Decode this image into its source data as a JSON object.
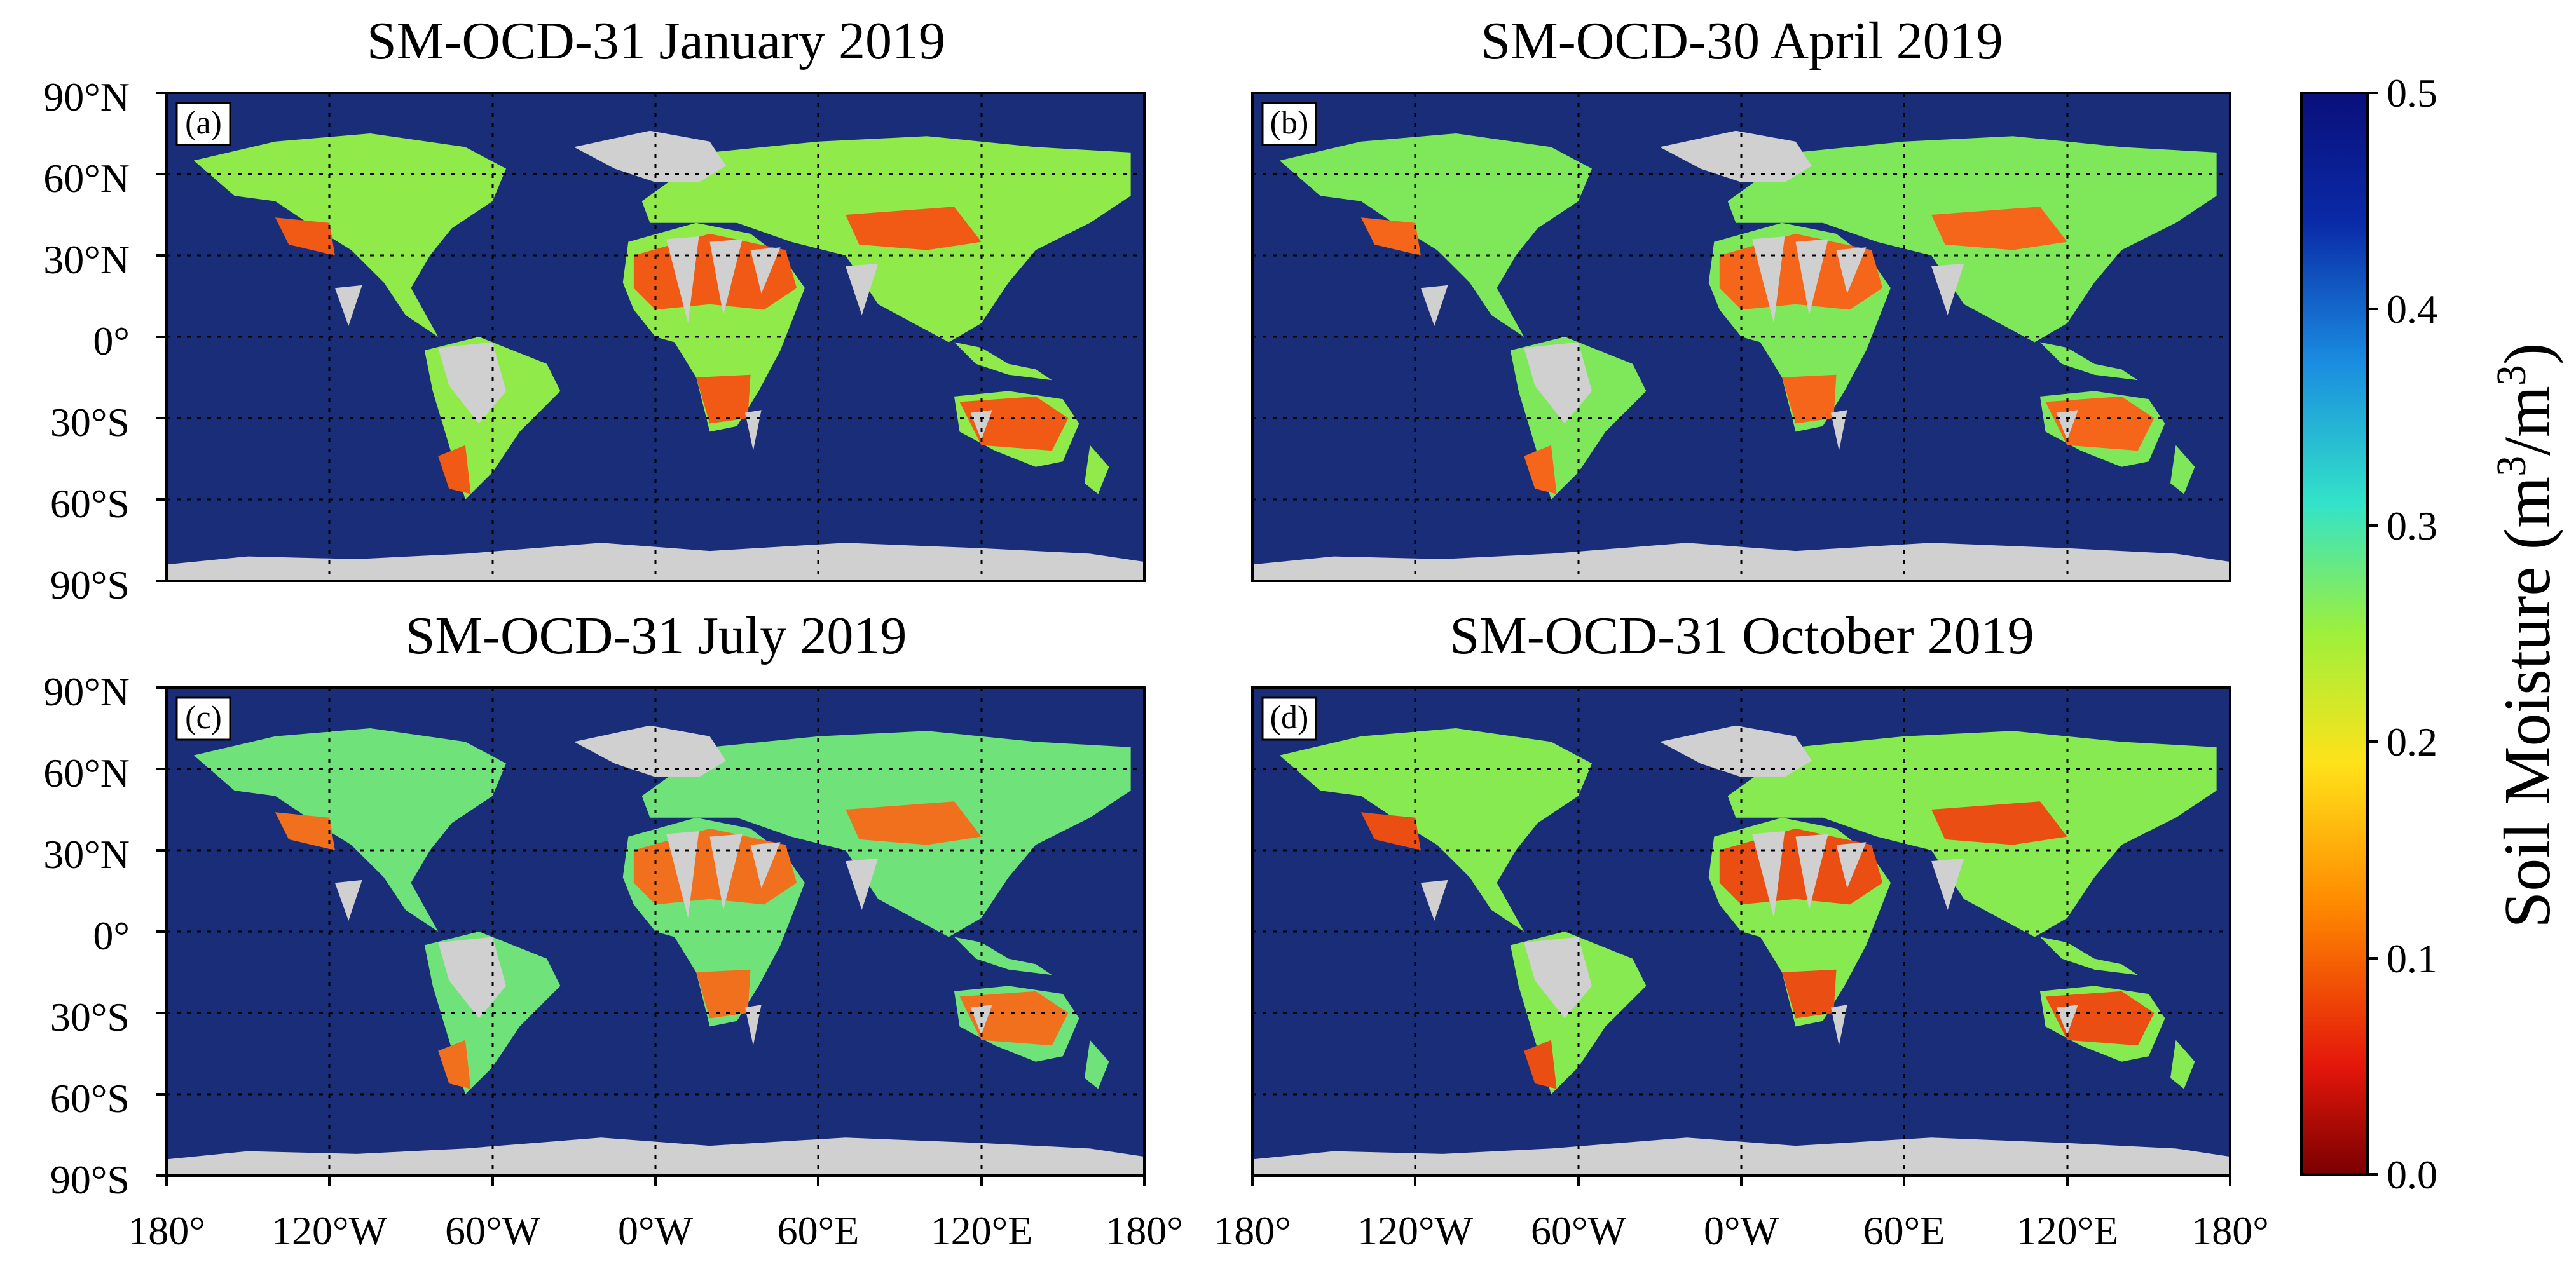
{
  "panels": [
    {
      "id": "a",
      "letter": "(a)",
      "title": "SM-OCD-31 January 2019"
    },
    {
      "id": "b",
      "letter": "(b)",
      "title": "SM-OCD-30 April 2019"
    },
    {
      "id": "c",
      "letter": "(c)",
      "title": "SM-OCD-31 July 2019"
    },
    {
      "id": "d",
      "letter": "(d)",
      "title": "SM-OCD-31 October 2019"
    }
  ],
  "axes": {
    "lat_ticks": [
      "90°N",
      "60°N",
      "30°N",
      "0°",
      "30°S",
      "60°S",
      "90°S"
    ],
    "lon_ticks": [
      "180°",
      "120°W",
      "60°W",
      "0°W",
      "60°E",
      "120°E",
      "180°"
    ]
  },
  "colorbar": {
    "label_prefix": "Soil Moisture (m",
    "sup1": "3",
    "mid": "/m",
    "sup2": "3",
    "suffix": ")",
    "ticks": [
      "0.5",
      "0.4",
      "0.3",
      "0.2",
      "0.1",
      "0.0"
    ]
  },
  "colors": {
    "ocean": "#1a2d78",
    "missing_land": "#d0d0d0",
    "ramp": [
      "#7a0000",
      "#e4160b",
      "#ff8a00",
      "#ffe21a",
      "#9ef03a",
      "#33e3c8",
      "#1a8de0",
      "#0a2aa8",
      "#0a0f7a"
    ]
  },
  "chart_data": {
    "type": "heatmap",
    "variable": "Soil Moisture (m3/m3)",
    "colorbar_range": [
      0.0,
      0.5
    ],
    "panels": [
      "SM-OCD-31 January 2019",
      "SM-OCD-30 April 2019",
      "SM-OCD-31 July 2019",
      "SM-OCD-31 October 2019"
    ],
    "lon_range": [
      -180,
      180
    ],
    "lat_range": [
      -90,
      90
    ],
    "grid": true
  }
}
